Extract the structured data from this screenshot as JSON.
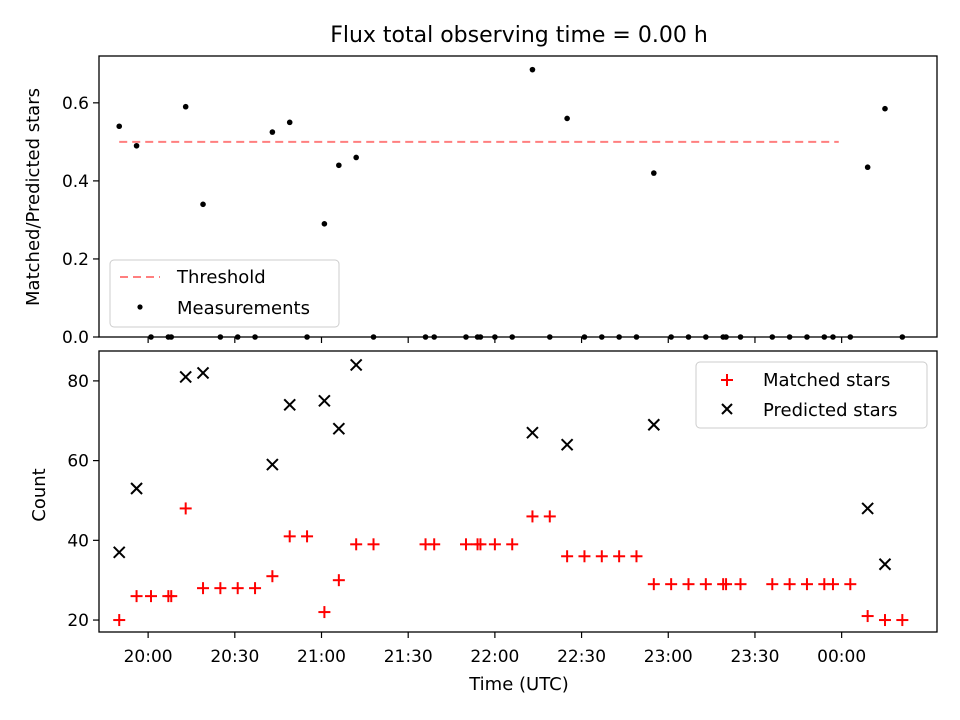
{
  "chart_data": [
    {
      "type": "scatter",
      "title": "Flux total observing time = 0.00 h",
      "xlabel": "",
      "ylabel": "Matched/Predicted stars",
      "ylim": [
        0,
        0.72
      ],
      "yticks": [
        0.0,
        0.2,
        0.4,
        0.6
      ],
      "ytick_labels": [
        "0.0",
        "0.2",
        "0.4",
        "0.6"
      ],
      "legend_position": "lower-left",
      "threshold": {
        "name": "Threshold",
        "value": 0.5,
        "x_start": "19:50",
        "x_end": "23:59",
        "color": "#ff7f7f",
        "style": "dashed"
      },
      "series": [
        {
          "name": "Measurements",
          "color": "#000000",
          "marker": "dot",
          "points": [
            [
              "19:50",
              0.54
            ],
            [
              "19:56",
              0.49
            ],
            [
              "20:01",
              0.0
            ],
            [
              "20:07",
              0.0
            ],
            [
              "20:08",
              0.0
            ],
            [
              "20:13",
              0.59
            ],
            [
              "20:19",
              0.34
            ],
            [
              "20:25",
              0.0
            ],
            [
              "20:31",
              0.0
            ],
            [
              "20:37",
              0.0
            ],
            [
              "20:43",
              0.525
            ],
            [
              "20:49",
              0.55
            ],
            [
              "20:55",
              0.0
            ],
            [
              "21:01",
              0.29
            ],
            [
              "21:06",
              0.44
            ],
            [
              "21:12",
              0.46
            ],
            [
              "21:18",
              0.0
            ],
            [
              "21:36",
              0.0
            ],
            [
              "21:39",
              0.0
            ],
            [
              "21:50",
              0.0
            ],
            [
              "21:54",
              0.0
            ],
            [
              "21:55",
              0.0
            ],
            [
              "22:00",
              0.0
            ],
            [
              "22:06",
              0.0
            ],
            [
              "22:13",
              0.685
            ],
            [
              "22:19",
              0.0
            ],
            [
              "22:25",
              0.56
            ],
            [
              "22:31",
              0.0
            ],
            [
              "22:37",
              0.0
            ],
            [
              "22:43",
              0.0
            ],
            [
              "22:49",
              0.0
            ],
            [
              "22:55",
              0.42
            ],
            [
              "23:01",
              0.0
            ],
            [
              "23:07",
              0.0
            ],
            [
              "23:13",
              0.0
            ],
            [
              "23:19",
              0.0
            ],
            [
              "23:20",
              0.0
            ],
            [
              "23:25",
              0.0
            ],
            [
              "23:36",
              0.0
            ],
            [
              "23:42",
              0.0
            ],
            [
              "23:48",
              0.0
            ],
            [
              "23:54",
              0.0
            ],
            [
              "23:57",
              0.0
            ],
            [
              "24:03",
              0.0
            ],
            [
              "24:09",
              0.435
            ],
            [
              "24:15",
              0.585
            ],
            [
              "24:21",
              0.0
            ]
          ]
        }
      ]
    },
    {
      "type": "scatter",
      "title": "",
      "xlabel": "Time (UTC)",
      "ylabel": "Count",
      "ylim": [
        17,
        87.5
      ],
      "yticks": [
        20,
        40,
        60,
        80
      ],
      "ytick_labels": [
        "20",
        "40",
        "60",
        "80"
      ],
      "legend_position": "top-right",
      "series": [
        {
          "name": "Matched stars",
          "color": "#ff0000",
          "marker": "plus",
          "points": [
            [
              "19:50",
              20
            ],
            [
              "19:56",
              26
            ],
            [
              "20:01",
              26
            ],
            [
              "20:07",
              26
            ],
            [
              "20:08",
              26
            ],
            [
              "20:13",
              48
            ],
            [
              "20:19",
              28
            ],
            [
              "20:25",
              28
            ],
            [
              "20:31",
              28
            ],
            [
              "20:37",
              28
            ],
            [
              "20:43",
              31
            ],
            [
              "20:49",
              41
            ],
            [
              "20:55",
              41
            ],
            [
              "21:01",
              22
            ],
            [
              "21:06",
              30
            ],
            [
              "21:12",
              39
            ],
            [
              "21:18",
              39
            ],
            [
              "21:36",
              39
            ],
            [
              "21:39",
              39
            ],
            [
              "21:50",
              39
            ],
            [
              "21:54",
              39
            ],
            [
              "21:55",
              39
            ],
            [
              "22:00",
              39
            ],
            [
              "22:06",
              39
            ],
            [
              "22:13",
              46
            ],
            [
              "22:19",
              46
            ],
            [
              "22:25",
              36
            ],
            [
              "22:31",
              36
            ],
            [
              "22:37",
              36
            ],
            [
              "22:43",
              36
            ],
            [
              "22:49",
              36
            ],
            [
              "22:55",
              29
            ],
            [
              "23:01",
              29
            ],
            [
              "23:07",
              29
            ],
            [
              "23:13",
              29
            ],
            [
              "23:19",
              29
            ],
            [
              "23:20",
              29
            ],
            [
              "23:25",
              29
            ],
            [
              "23:36",
              29
            ],
            [
              "23:42",
              29
            ],
            [
              "23:48",
              29
            ],
            [
              "23:54",
              29
            ],
            [
              "23:57",
              29
            ],
            [
              "24:03",
              29
            ],
            [
              "24:09",
              21
            ],
            [
              "24:15",
              20
            ],
            [
              "24:21",
              20
            ]
          ]
        },
        {
          "name": "Predicted stars",
          "color": "#000000",
          "marker": "x",
          "points": [
            [
              "19:50",
              37
            ],
            [
              "19:56",
              53
            ],
            [
              "20:13",
              81
            ],
            [
              "20:19",
              82
            ],
            [
              "20:43",
              59
            ],
            [
              "20:49",
              74
            ],
            [
              "21:01",
              75
            ],
            [
              "21:06",
              68
            ],
            [
              "21:12",
              84
            ],
            [
              "22:13",
              67
            ],
            [
              "22:25",
              64
            ],
            [
              "22:55",
              69
            ],
            [
              "24:09",
              48
            ],
            [
              "24:15",
              34
            ]
          ]
        }
      ]
    }
  ],
  "x_axis": {
    "range": [
      "19:43",
      "24:33"
    ],
    "ticks": [
      "20:00",
      "20:30",
      "21:00",
      "21:30",
      "22:00",
      "22:30",
      "23:00",
      "23:30",
      "24:00"
    ],
    "tick_labels": [
      "20:00",
      "20:30",
      "21:00",
      "21:30",
      "22:00",
      "22:30",
      "23:00",
      "23:30",
      "00:00"
    ]
  }
}
